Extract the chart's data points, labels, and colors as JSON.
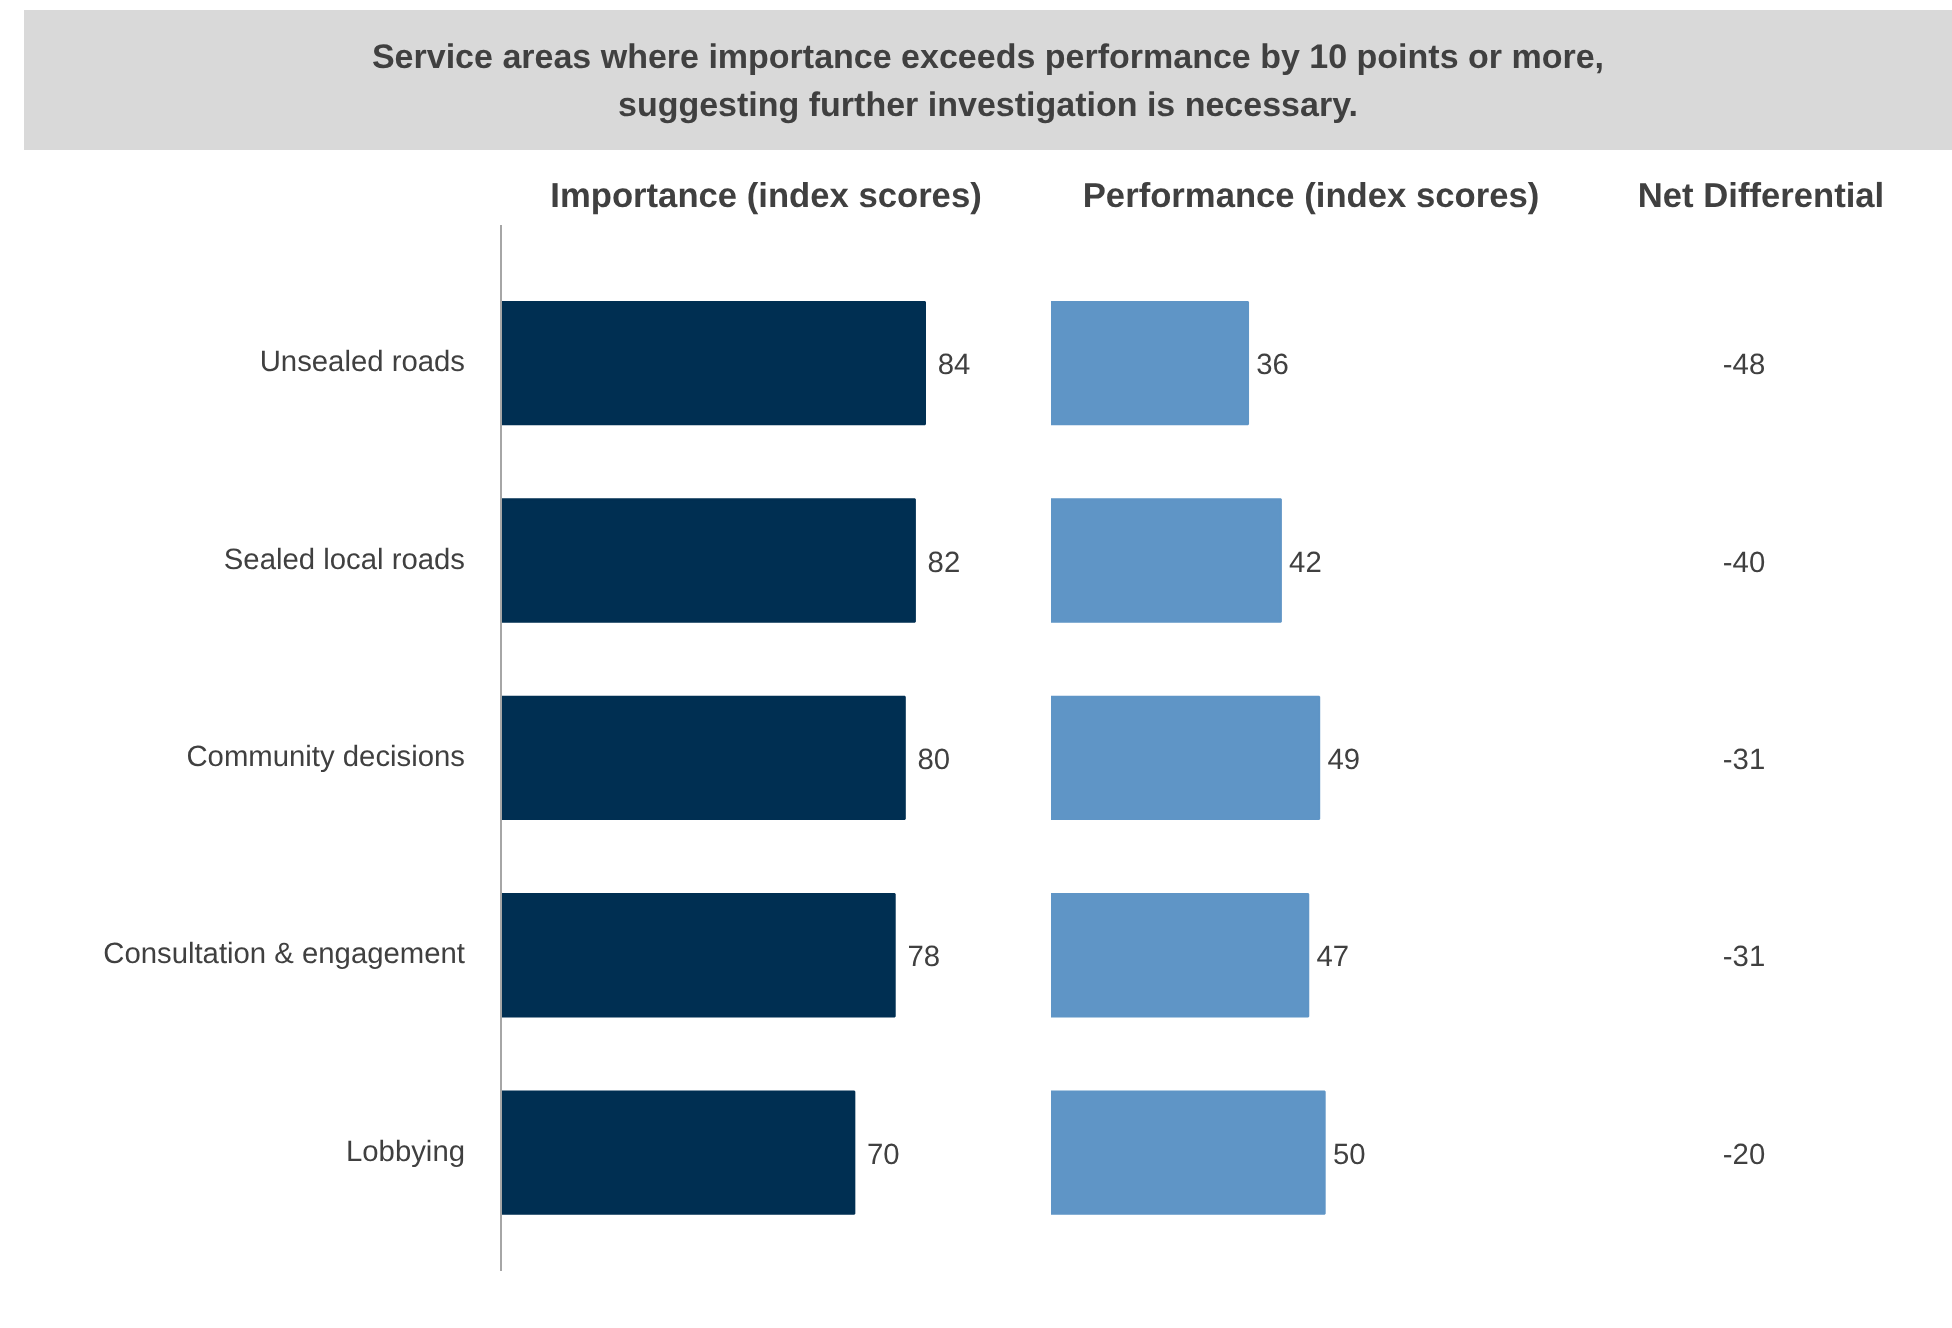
{
  "chart_data": [
    {
      "type": "other",
      "title": "Service areas where importance exceeds performance by 10 points or more,\nsuggesting further investigation is necessary."
    },
    {
      "type": "bar",
      "orientation": "horizontal",
      "title": "Importance (index scores)",
      "categories": [
        "Unsealed roads",
        "Sealed local roads",
        "Community decisions",
        "Consultation & engagement",
        "Lobbying"
      ],
      "values": [
        84,
        82,
        80,
        78,
        70
      ],
      "color": "#002f52",
      "data_labels": true,
      "grid": false
    },
    {
      "type": "bar",
      "orientation": "horizontal",
      "title": "Performance (index scores)",
      "categories": [
        null,
        null,
        null,
        null,
        null
      ],
      "values": [
        36,
        42,
        49,
        47,
        50
      ],
      "color": "#5f95c6",
      "data_labels": true,
      "grid": false,
      "tick_labels": false
    },
    {
      "type": "other",
      "title": "Net Differential",
      "annotations": [
        "-48",
        "-40",
        "-31",
        "-31",
        "-20"
      ]
    }
  ]
}
